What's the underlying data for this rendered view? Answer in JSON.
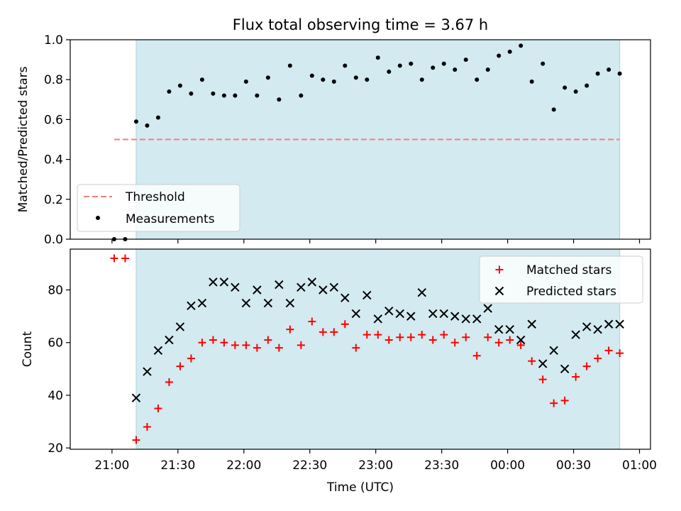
{
  "title": "Flux total observing time = 3.67 h",
  "colors": {
    "band": "#d3eaf0",
    "band_edge": "#a8d3df",
    "threshold": "#f08080",
    "measurement": "#000000",
    "matched": "#ff0000",
    "predicted": "#000000"
  },
  "chart_data": [
    {
      "type": "scatter",
      "title": "Flux total observing time = 3.67 h",
      "xlabel": "",
      "ylabel": "Matched/Predicted stars",
      "x_unit": "minutes after 21:00 UTC",
      "xlim": [
        -19,
        245
      ],
      "ylim": [
        0,
        1.0
      ],
      "yticks": [
        0.0,
        0.2,
        0.4,
        0.6,
        0.8,
        1.0
      ],
      "ytick_labels": [
        "0.0",
        "0.2",
        "0.4",
        "0.6",
        "0.8",
        "1.0"
      ],
      "shaded_x_range": [
        11,
        231
      ],
      "grid": false,
      "legend": {
        "position": "lower-left",
        "entries": [
          "Threshold",
          "Measurements"
        ]
      },
      "threshold": {
        "name": "Threshold",
        "y": 0.5,
        "x": [
          1,
          231
        ]
      },
      "series": [
        {
          "name": "Measurements",
          "x": [
            1,
            6,
            11,
            16,
            21,
            26,
            31,
            36,
            41,
            46,
            51,
            56,
            61,
            66,
            71,
            76,
            81,
            86,
            91,
            96,
            101,
            106,
            111,
            116,
            121,
            126,
            131,
            136,
            141,
            146,
            151,
            156,
            161,
            166,
            171,
            176,
            181,
            186,
            191,
            196,
            201,
            206,
            211,
            216,
            221,
            226,
            231
          ],
          "y": [
            0.0,
            0.0,
            0.59,
            0.57,
            0.61,
            0.74,
            0.77,
            0.73,
            0.8,
            0.73,
            0.72,
            0.72,
            0.79,
            0.72,
            0.81,
            0.7,
            0.87,
            0.72,
            0.82,
            0.8,
            0.79,
            0.87,
            0.81,
            0.8,
            0.91,
            0.84,
            0.87,
            0.88,
            0.8,
            0.86,
            0.88,
            0.85,
            0.9,
            0.8,
            0.85,
            0.92,
            0.94,
            0.97,
            0.79,
            0.88,
            0.65,
            0.76,
            0.74,
            0.77,
            0.83,
            0.85,
            0.83
          ]
        }
      ]
    },
    {
      "type": "scatter",
      "title": "",
      "xlabel": "Time (UTC)",
      "ylabel": "Count",
      "x_unit": "minutes after 21:00 UTC",
      "xlim": [
        -19,
        245
      ],
      "ylim": [
        19.5,
        95.5
      ],
      "xticks": [
        0,
        30,
        60,
        90,
        120,
        150,
        180,
        210,
        240
      ],
      "xtick_labels": [
        "21:00",
        "21:30",
        "22:00",
        "22:30",
        "23:00",
        "23:30",
        "00:00",
        "00:30",
        "01:00"
      ],
      "yticks": [
        20,
        40,
        60,
        80
      ],
      "ytick_labels": [
        "20",
        "40",
        "60",
        "80"
      ],
      "shaded_x_range": [
        11,
        231
      ],
      "grid": false,
      "legend": {
        "position": "top-right",
        "entries": [
          "Matched stars",
          "Predicted stars"
        ]
      },
      "series": [
        {
          "name": "Matched stars",
          "marker": "+",
          "x": [
            1,
            6,
            11,
            16,
            21,
            26,
            31,
            36,
            41,
            46,
            51,
            56,
            61,
            66,
            71,
            76,
            81,
            86,
            91,
            96,
            101,
            106,
            111,
            116,
            121,
            126,
            131,
            136,
            141,
            146,
            151,
            156,
            161,
            166,
            171,
            176,
            181,
            186,
            191,
            196,
            201,
            206,
            211,
            216,
            221,
            226,
            231
          ],
          "y": [
            92,
            92,
            23,
            28,
            35,
            45,
            51,
            54,
            60,
            61,
            60,
            59,
            59,
            58,
            61,
            58,
            65,
            59,
            68,
            64,
            64,
            67,
            58,
            63,
            63,
            61,
            62,
            62,
            63,
            61,
            63,
            60,
            62,
            55,
            62,
            60,
            61,
            59,
            53,
            46,
            37,
            38,
            47,
            51,
            54,
            57,
            56
          ]
        },
        {
          "name": "Predicted stars",
          "marker": "x",
          "x": [
            11,
            16,
            21,
            26,
            31,
            36,
            41,
            46,
            51,
            56,
            61,
            66,
            71,
            76,
            81,
            86,
            91,
            96,
            101,
            106,
            111,
            116,
            121,
            126,
            131,
            136,
            141,
            146,
            151,
            156,
            161,
            166,
            171,
            176,
            181,
            186,
            191,
            196,
            201,
            206,
            211,
            216,
            221,
            226,
            231
          ],
          "y": [
            39,
            49,
            57,
            61,
            66,
            74,
            75,
            83,
            83,
            81,
            75,
            80,
            75,
            82,
            75,
            81,
            83,
            80,
            81,
            77,
            71,
            78,
            69,
            72,
            71,
            70,
            79,
            71,
            71,
            70,
            69,
            69,
            73,
            65,
            65,
            61,
            67,
            52,
            57,
            50,
            63,
            66,
            65,
            67,
            67
          ]
        }
      ]
    }
  ]
}
